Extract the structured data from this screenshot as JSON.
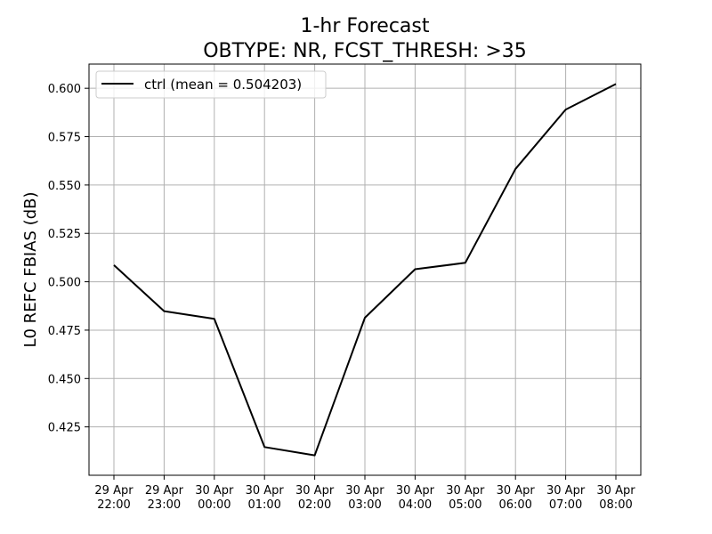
{
  "chart_data": {
    "type": "line",
    "title": [
      "1-hr Forecast",
      "OBTYPE: NR,  FCST_THRESH: >35"
    ],
    "xlabel": "",
    "ylabel": "L0 REFC FBIAS (dB)",
    "categories": [
      [
        "29 Apr",
        "22:00"
      ],
      [
        "29 Apr",
        "23:00"
      ],
      [
        "30 Apr",
        "00:00"
      ],
      [
        "30 Apr",
        "01:00"
      ],
      [
        "30 Apr",
        "02:00"
      ],
      [
        "30 Apr",
        "03:00"
      ],
      [
        "30 Apr",
        "04:00"
      ],
      [
        "30 Apr",
        "05:00"
      ],
      [
        "30 Apr",
        "06:00"
      ],
      [
        "30 Apr",
        "07:00"
      ],
      [
        "30 Apr",
        "08:00"
      ]
    ],
    "series": [
      {
        "name": "ctrl (mean = 0.504203)",
        "color": "#000000",
        "values": [
          0.5086,
          0.4848,
          0.4808,
          0.4146,
          0.4103,
          0.4814,
          0.5065,
          0.5098,
          0.5583,
          0.589,
          0.6022
        ]
      }
    ],
    "yticks": [
      "0.425",
      "0.450",
      "0.475",
      "0.500",
      "0.525",
      "0.550",
      "0.575",
      "0.600"
    ],
    "ylim": [
      0.4,
      0.6125
    ],
    "grid": true,
    "legend_position": "upper-left"
  }
}
